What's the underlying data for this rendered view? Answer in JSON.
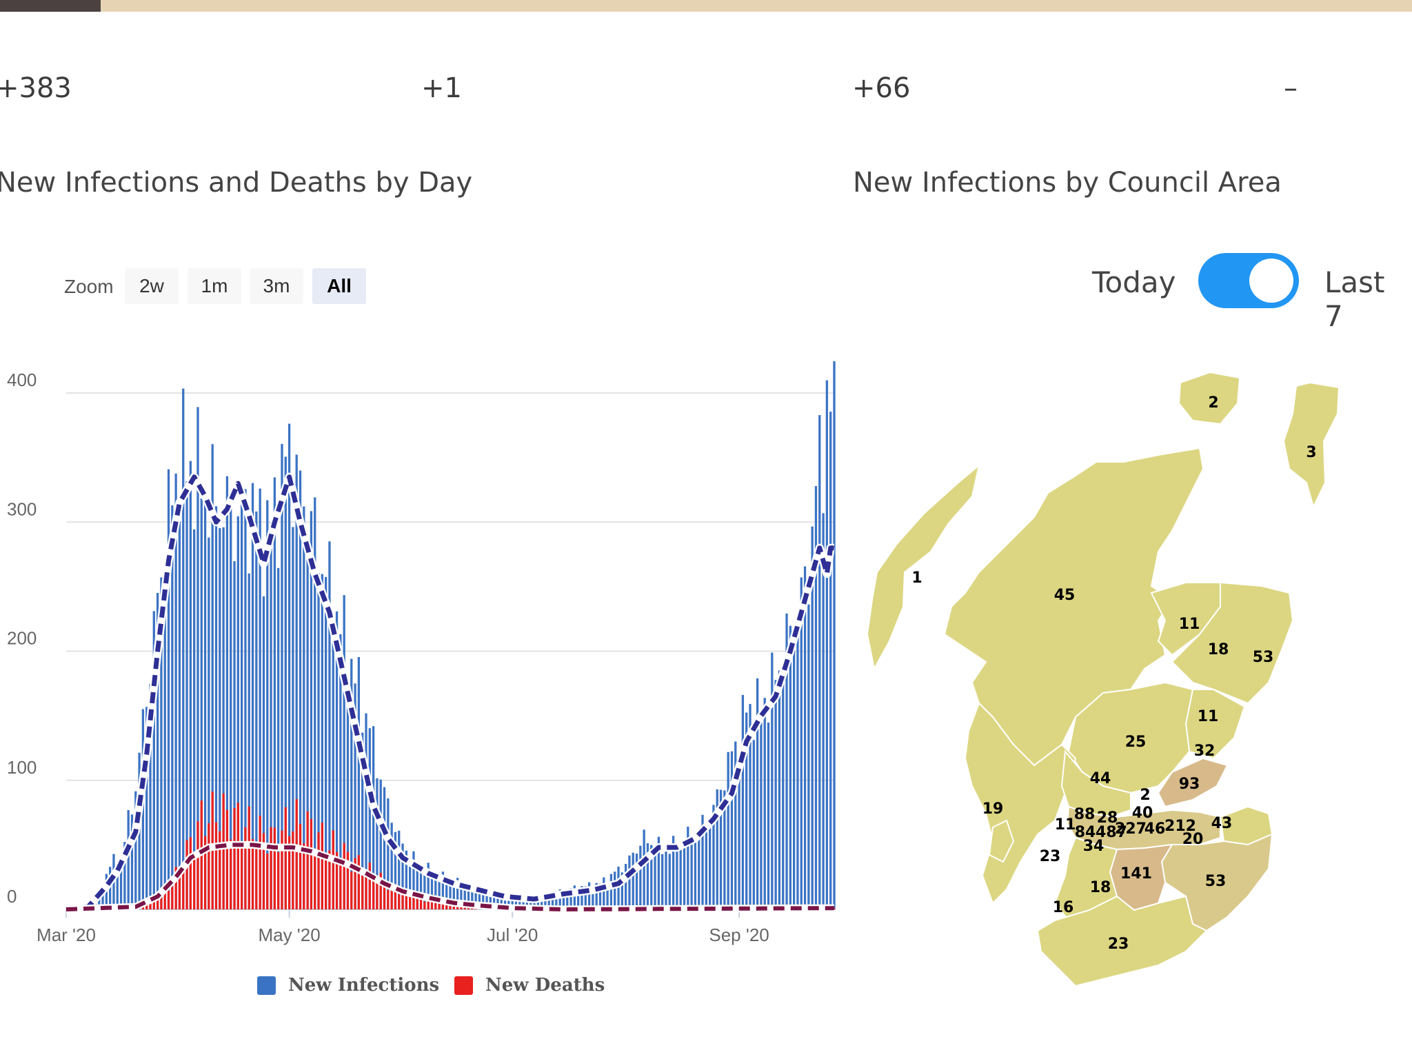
{
  "stats": [
    "+383",
    "+1",
    "+66",
    "–"
  ],
  "left_title": "New Infections and Deaths by Day",
  "right_title": "New Infections by Council Area",
  "zoom": {
    "label": "Zoom",
    "buttons": [
      "2w",
      "1m",
      "3m",
      "All"
    ],
    "active": "All"
  },
  "toggle": {
    "left_label": "Today",
    "right_label": "Last 7",
    "on": true
  },
  "colors": {
    "infections": "#3b73c4",
    "deaths": "#e8201e",
    "infections_avg": "#2e2f95",
    "deaths_avg": "#7a1547",
    "toggle": "#2196f3",
    "map_low": "#dcd682",
    "map_mid": "#d9c98a",
    "map_high": "#d7b98a"
  },
  "chart_data": {
    "type": "bar",
    "title": "New Infections and Deaths by Day",
    "x_range": [
      "2020-03-01",
      "2020-09-27"
    ],
    "x_ticks": [
      "Mar '20",
      "May '20",
      "Jul '20",
      "Sep '20"
    ],
    "y_ticks": [
      "0",
      "100",
      "200",
      "300",
      "400"
    ],
    "ylim": [
      0,
      400
    ],
    "grid": true,
    "legend_position": "bottom-center",
    "series": [
      {
        "name": "New Infections",
        "kind": "bar",
        "keypoints": [
          [
            "2020-03-01",
            0
          ],
          [
            "2020-03-05",
            1
          ],
          [
            "2020-03-10",
            12
          ],
          [
            "2020-03-13",
            35
          ],
          [
            "2020-03-16",
            40
          ],
          [
            "2020-03-20",
            95
          ],
          [
            "2020-03-24",
            190
          ],
          [
            "2020-03-28",
            285
          ],
          [
            "2020-04-01",
            350
          ],
          [
            "2020-04-05",
            340
          ],
          [
            "2020-04-09",
            320
          ],
          [
            "2020-04-13",
            310
          ],
          [
            "2020-04-17",
            300
          ],
          [
            "2020-04-21",
            310
          ],
          [
            "2020-04-25",
            290
          ],
          [
            "2020-04-29",
            330
          ],
          [
            "2020-05-01",
            360
          ],
          [
            "2020-05-03",
            330
          ],
          [
            "2020-05-07",
            300
          ],
          [
            "2020-05-11",
            260
          ],
          [
            "2020-05-15",
            220
          ],
          [
            "2020-05-19",
            180
          ],
          [
            "2020-05-23",
            140
          ],
          [
            "2020-05-27",
            90
          ],
          [
            "2020-05-31",
            55
          ],
          [
            "2020-06-05",
            35
          ],
          [
            "2020-06-12",
            25
          ],
          [
            "2020-06-20",
            18
          ],
          [
            "2020-06-28",
            10
          ],
          [
            "2020-07-05",
            8
          ],
          [
            "2020-07-15",
            15
          ],
          [
            "2020-07-25",
            20
          ],
          [
            "2020-08-01",
            35
          ],
          [
            "2020-08-06",
            55
          ],
          [
            "2020-08-12",
            45
          ],
          [
            "2020-08-18",
            55
          ],
          [
            "2020-08-24",
            70
          ],
          [
            "2020-08-30",
            120
          ],
          [
            "2020-09-03",
            155
          ],
          [
            "2020-09-07",
            155
          ],
          [
            "2020-09-11",
            180
          ],
          [
            "2020-09-15",
            215
          ],
          [
            "2020-09-19",
            250
          ],
          [
            "2020-09-21",
            290
          ],
          [
            "2020-09-23",
            350
          ],
          [
            "2020-09-25",
            385
          ]
        ]
      },
      {
        "name": "New Deaths",
        "kind": "bar",
        "keypoints": [
          [
            "2020-03-01",
            0
          ],
          [
            "2020-03-15",
            0
          ],
          [
            "2020-03-20",
            2
          ],
          [
            "2020-03-25",
            8
          ],
          [
            "2020-03-30",
            20
          ],
          [
            "2020-04-03",
            45
          ],
          [
            "2020-04-07",
            70
          ],
          [
            "2020-04-12",
            75
          ],
          [
            "2020-04-17",
            70
          ],
          [
            "2020-04-22",
            60
          ],
          [
            "2020-04-27",
            55
          ],
          [
            "2020-05-02",
            70
          ],
          [
            "2020-05-06",
            65
          ],
          [
            "2020-05-10",
            55
          ],
          [
            "2020-05-15",
            45
          ],
          [
            "2020-05-20",
            35
          ],
          [
            "2020-05-25",
            25
          ],
          [
            "2020-05-31",
            15
          ],
          [
            "2020-06-07",
            8
          ],
          [
            "2020-06-15",
            4
          ],
          [
            "2020-06-22",
            2
          ],
          [
            "2020-07-01",
            0
          ],
          [
            "2020-09-27",
            1
          ]
        ]
      },
      {
        "name": "",
        "kind": "line-dashed",
        "keypoints": [
          [
            "2020-03-01",
            0
          ],
          [
            "2020-03-07",
            2
          ],
          [
            "2020-03-12",
            18
          ],
          [
            "2020-03-15",
            30
          ],
          [
            "2020-03-20",
            60
          ],
          [
            "2020-03-23",
            120
          ],
          [
            "2020-03-26",
            200
          ],
          [
            "2020-03-29",
            270
          ],
          [
            "2020-04-01",
            315
          ],
          [
            "2020-04-05",
            335
          ],
          [
            "2020-04-08",
            320
          ],
          [
            "2020-04-11",
            300
          ],
          [
            "2020-04-14",
            310
          ],
          [
            "2020-04-17",
            330
          ],
          [
            "2020-04-20",
            305
          ],
          [
            "2020-04-24",
            268
          ],
          [
            "2020-04-27",
            300
          ],
          [
            "2020-05-01",
            335
          ],
          [
            "2020-05-04",
            300
          ],
          [
            "2020-05-08",
            260
          ],
          [
            "2020-05-12",
            230
          ],
          [
            "2020-05-16",
            180
          ],
          [
            "2020-05-20",
            130
          ],
          [
            "2020-05-24",
            80
          ],
          [
            "2020-05-28",
            55
          ],
          [
            "2020-06-01",
            40
          ],
          [
            "2020-06-08",
            28
          ],
          [
            "2020-06-15",
            20
          ],
          [
            "2020-06-22",
            15
          ],
          [
            "2020-06-29",
            10
          ],
          [
            "2020-07-07",
            8
          ],
          [
            "2020-07-15",
            12
          ],
          [
            "2020-07-23",
            15
          ],
          [
            "2020-07-30",
            20
          ],
          [
            "2020-08-05",
            35
          ],
          [
            "2020-08-10",
            48
          ],
          [
            "2020-08-15",
            48
          ],
          [
            "2020-08-20",
            55
          ],
          [
            "2020-08-25",
            70
          ],
          [
            "2020-08-30",
            90
          ],
          [
            "2020-09-03",
            130
          ],
          [
            "2020-09-07",
            150
          ],
          [
            "2020-09-11",
            165
          ],
          [
            "2020-09-15",
            200
          ],
          [
            "2020-09-19",
            240
          ],
          [
            "2020-09-23",
            280
          ],
          [
            "2020-09-25",
            260
          ],
          [
            "2020-09-26",
            280
          ]
        ]
      },
      {
        "name": "",
        "kind": "line-dashed",
        "keypoints": [
          [
            "2020-03-01",
            0
          ],
          [
            "2020-03-20",
            2
          ],
          [
            "2020-03-26",
            10
          ],
          [
            "2020-03-31",
            25
          ],
          [
            "2020-04-04",
            40
          ],
          [
            "2020-04-09",
            48
          ],
          [
            "2020-04-15",
            50
          ],
          [
            "2020-04-21",
            50
          ],
          [
            "2020-04-27",
            48
          ],
          [
            "2020-05-02",
            48
          ],
          [
            "2020-05-07",
            45
          ],
          [
            "2020-05-12",
            40
          ],
          [
            "2020-05-17",
            35
          ],
          [
            "2020-05-22",
            28
          ],
          [
            "2020-05-27",
            20
          ],
          [
            "2020-06-01",
            14
          ],
          [
            "2020-06-08",
            9
          ],
          [
            "2020-06-15",
            5
          ],
          [
            "2020-06-22",
            3
          ],
          [
            "2020-07-01",
            1
          ],
          [
            "2020-07-15",
            0
          ],
          [
            "2020-09-27",
            1
          ]
        ]
      }
    ]
  },
  "map": {
    "labels": [
      "2",
      "3",
      "1",
      "45",
      "11",
      "18",
      "53",
      "11",
      "25",
      "32",
      "44",
      "93",
      "2",
      "19",
      "40",
      "88",
      "28",
      "11",
      "84",
      "487",
      "227",
      "46",
      "212",
      "43",
      "20",
      "34",
      "23",
      "141",
      "53",
      "18",
      "16",
      "23"
    ]
  }
}
